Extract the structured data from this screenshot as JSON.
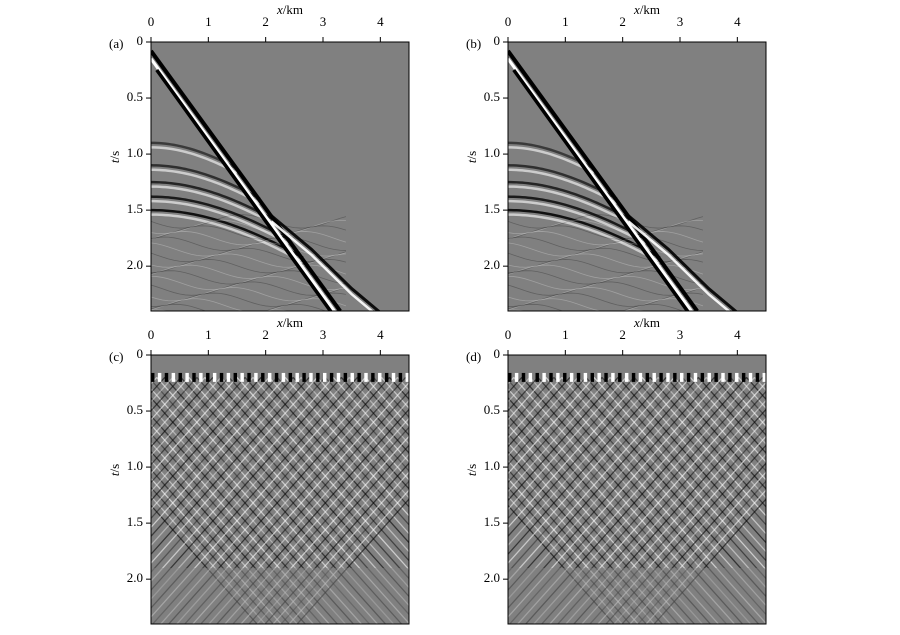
{
  "chart_data": [
    {
      "type": "shot",
      "label": "(a)",
      "xlabel": {
        "symbol": "x",
        "unit": "/km"
      },
      "ylabel": {
        "symbol": "t",
        "unit": "/s"
      },
      "xlim": [
        0,
        4.5
      ],
      "ylim": [
        0,
        2.4
      ],
      "xticks": [
        0,
        1,
        2,
        3,
        4
      ],
      "yticks": [
        0,
        {
          "value": 0.5,
          "label": "0.5"
        },
        {
          "value": 1.0,
          "label": "1.0"
        },
        {
          "value": 1.5,
          "label": "1.5"
        },
        {
          "value": 2.0,
          "label": "2.0"
        }
      ]
    },
    {
      "type": "shot",
      "label": "(b)",
      "xlabel": {
        "symbol": "x",
        "unit": "/km"
      },
      "ylabel": {
        "symbol": "t",
        "unit": "/s"
      },
      "xlim": [
        0,
        4.5
      ],
      "ylim": [
        0,
        2.4
      ],
      "xticks": [
        0,
        1,
        2,
        3,
        4
      ],
      "yticks": [
        0,
        {
          "value": 0.5,
          "label": "0.5"
        },
        {
          "value": 1.0,
          "label": "1.0"
        },
        {
          "value": 1.5,
          "label": "1.5"
        },
        {
          "value": 2.0,
          "label": "2.0"
        }
      ]
    },
    {
      "type": "noise",
      "label": "(c)",
      "xlabel": {
        "symbol": "x",
        "unit": "/km"
      },
      "ylabel": {
        "symbol": "t",
        "unit": "/s"
      },
      "xlim": [
        0,
        4.5
      ],
      "ylim": [
        0,
        2.4
      ],
      "xticks": [
        0,
        1,
        2,
        3,
        4
      ],
      "yticks": [
        0,
        {
          "value": 0.5,
          "label": "0.5"
        },
        {
          "value": 1.0,
          "label": "1.0"
        },
        {
          "value": 1.5,
          "label": "1.5"
        },
        {
          "value": 2.0,
          "label": "2.0"
        }
      ]
    },
    {
      "type": "noise",
      "label": "(d)",
      "xlabel": {
        "symbol": "x",
        "unit": "/km"
      },
      "ylabel": {
        "symbol": "t",
        "unit": "/s"
      },
      "xlim": [
        0,
        4.5
      ],
      "ylim": [
        0,
        2.4
      ],
      "xticks": [
        0,
        1,
        2,
        3,
        4
      ],
      "yticks": [
        0,
        {
          "value": 0.5,
          "label": "0.5"
        },
        {
          "value": 1.0,
          "label": "1.0"
        },
        {
          "value": 1.5,
          "label": "1.5"
        },
        {
          "value": 2.0,
          "label": "2.0"
        }
      ]
    }
  ]
}
